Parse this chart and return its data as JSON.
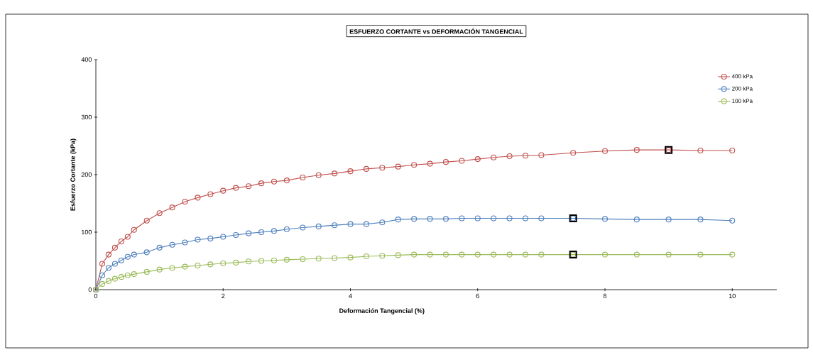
{
  "chart_data": {
    "type": "line",
    "title": "ESFUERZO CORTANTE vs DEFORMACIÓN TANGENCIAL",
    "xlabel": "Deformación  Tangencial (%)",
    "ylabel": "Esfuerzo Cortante (kPa)",
    "x": [
      0,
      0.1,
      0.2,
      0.3,
      0.4,
      0.5,
      0.6,
      0.8,
      1.0,
      1.2,
      1.4,
      1.6,
      1.8,
      2.0,
      2.2,
      2.4,
      2.6,
      2.8,
      3.0,
      3.25,
      3.5,
      3.75,
      4.0,
      4.25,
      4.5,
      4.75,
      5.0,
      5.25,
      5.5,
      5.75,
      6.0,
      6.25,
      6.5,
      6.75,
      7.0,
      7.5,
      8,
      8.5,
      9,
      9.5,
      10
    ],
    "series": [
      {
        "name": "400 kPa",
        "color": "#c0504d",
        "values": [
          0,
          45,
          61,
          73,
          84,
          92,
          104,
          120,
          133,
          143,
          153,
          160,
          166,
          172,
          177,
          180,
          185,
          188,
          190,
          195,
          199,
          202,
          206,
          210,
          212,
          214,
          217,
          219,
          222,
          224,
          227,
          230,
          232,
          233,
          234,
          238,
          241,
          243,
          243,
          242,
          242
        ]
      },
      {
        "name": "200 kPa",
        "color": "#4f81bd",
        "values": [
          0,
          25,
          38,
          45,
          51,
          57,
          61,
          65,
          73,
          78,
          82,
          87,
          89,
          92,
          95,
          98,
          100,
          102,
          105,
          108,
          110,
          112,
          114,
          114,
          117,
          122,
          123,
          123,
          123,
          124,
          124,
          124,
          124,
          124,
          124,
          124,
          123,
          122,
          122,
          122,
          120
        ]
      },
      {
        "name": "100 kPa",
        "color": "#9bbb59",
        "values": [
          0,
          10,
          15,
          19,
          22,
          25,
          27,
          31,
          35,
          38,
          40,
          42,
          44,
          46,
          47,
          49,
          50,
          51,
          52,
          53,
          54,
          55,
          56,
          58,
          59,
          60,
          61,
          61,
          61,
          61,
          61,
          61,
          61,
          61,
          61,
          61,
          61,
          61,
          61,
          61,
          61
        ]
      },
      {
        "type": "scatter",
        "color": "#000000",
        "marker": "square",
        "values": [
          null,
          null,
          null,
          null,
          null,
          null,
          null,
          null,
          null,
          null,
          null,
          null,
          null,
          null,
          null,
          null,
          null,
          null,
          null,
          null,
          null,
          null,
          null,
          null,
          null,
          null,
          null,
          null,
          null,
          null,
          null,
          null,
          null,
          null,
          null,
          124,
          null,
          null,
          243,
          null,
          null
        ]
      },
      {
        "type": "scatter",
        "color": "#000000",
        "marker": "square",
        "values": [
          null,
          null,
          null,
          null,
          null,
          null,
          null,
          null,
          null,
          null,
          null,
          null,
          null,
          null,
          null,
          null,
          null,
          null,
          null,
          null,
          null,
          null,
          null,
          null,
          null,
          null,
          null,
          null,
          null,
          null,
          null,
          null,
          null,
          null,
          null,
          61,
          null,
          null,
          null,
          null,
          null
        ]
      }
    ],
    "marker": "circle",
    "line_style": "solid",
    "legend": "top right",
    "grid": false,
    "xlim": [
      0,
      10.7
    ],
    "xticks": [
      0,
      2,
      4,
      6,
      8,
      10
    ],
    "ylim": [
      0,
      400
    ],
    "yticks": [
      0,
      100,
      200,
      300,
      400
    ]
  }
}
